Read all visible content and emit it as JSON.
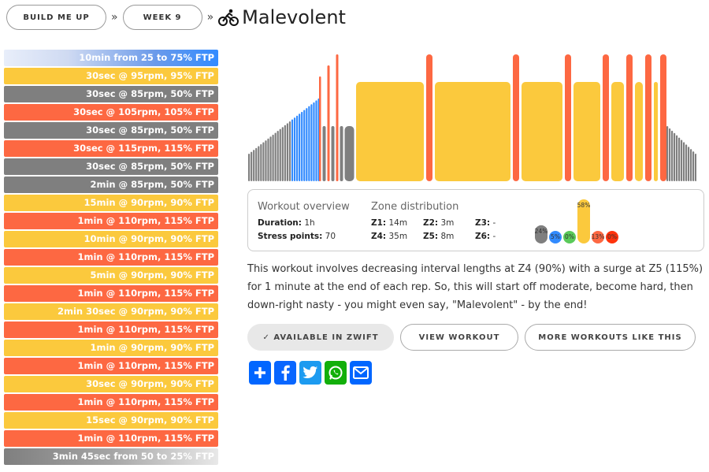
{
  "breadcrumb": {
    "home": "BUILD ME UP",
    "week": "WEEK 9",
    "sep": "»"
  },
  "workout": {
    "title": "Malevolent"
  },
  "steps": [
    {
      "text": "10min from 25 to 75% FTP",
      "zone": "warm"
    },
    {
      "text": "30sec @ 95rpm, 95% FTP",
      "zone": "y"
    },
    {
      "text": "30sec @ 85rpm, 50% FTP",
      "zone": "g"
    },
    {
      "text": "30sec @ 105rpm, 105% FTP",
      "zone": "r"
    },
    {
      "text": "30sec @ 85rpm, 50% FTP",
      "zone": "g"
    },
    {
      "text": "30sec @ 115rpm, 115% FTP",
      "zone": "r"
    },
    {
      "text": "30sec @ 85rpm, 50% FTP",
      "zone": "g"
    },
    {
      "text": "2min @ 85rpm, 50% FTP",
      "zone": "g"
    },
    {
      "text": "15min @ 90rpm, 90% FTP",
      "zone": "y"
    },
    {
      "text": "1min @ 110rpm, 115% FTP",
      "zone": "r"
    },
    {
      "text": "10min @ 90rpm, 90% FTP",
      "zone": "y"
    },
    {
      "text": "1min @ 110rpm, 115% FTP",
      "zone": "r"
    },
    {
      "text": "5min @ 90rpm, 90% FTP",
      "zone": "y"
    },
    {
      "text": "1min @ 110rpm, 115% FTP",
      "zone": "r"
    },
    {
      "text": "2min 30sec @ 90rpm, 90% FTP",
      "zone": "y"
    },
    {
      "text": "1min @ 110rpm, 115% FTP",
      "zone": "r"
    },
    {
      "text": "1min @ 90rpm, 90% FTP",
      "zone": "y"
    },
    {
      "text": "1min @ 110rpm, 115% FTP",
      "zone": "r"
    },
    {
      "text": "30sec @ 90rpm, 90% FTP",
      "zone": "y"
    },
    {
      "text": "1min @ 110rpm, 115% FTP",
      "zone": "r"
    },
    {
      "text": "15sec @ 90rpm, 90% FTP",
      "zone": "y"
    },
    {
      "text": "1min @ 110rpm, 115% FTP",
      "zone": "r"
    },
    {
      "text": "3min 45sec from 50 to 25% FTP",
      "zone": "cool"
    }
  ],
  "overview": {
    "heading": "Workout overview",
    "duration_label": "Duration:",
    "duration_value": "1h",
    "stress_label": "Stress points:",
    "stress_value": "70"
  },
  "zones": {
    "heading": "Zone distribution",
    "z1_label": "Z1:",
    "z1_value": "14m",
    "z2_label": "Z2:",
    "z2_value": "3m",
    "z3_label": "Z3:",
    "z3_value": "-",
    "z4_label": "Z4:",
    "z4_value": "35m",
    "z5_label": "Z5:",
    "z5_value": "8m",
    "z6_label": "Z6:",
    "z6_value": "-",
    "distribution": [
      {
        "zone": "Z1",
        "label": "24%",
        "pct": 24,
        "color": "#7f7f7f"
      },
      {
        "zone": "Z2",
        "label": "5%",
        "pct": 5,
        "color": "#328bff"
      },
      {
        "zone": "Z3",
        "label": "0%",
        "pct": 0,
        "color": "#5aca5a"
      },
      {
        "zone": "Z4",
        "label": "58%",
        "pct": 58,
        "color": "#fbc93d"
      },
      {
        "zone": "Z5",
        "label": "13%",
        "pct": 13,
        "color": "#fd6842"
      },
      {
        "zone": "Z6",
        "label": "0%",
        "pct": 0,
        "color": "#ff330c"
      }
    ]
  },
  "description": "This workout involves decreasing interval lengths at Z4 (90%) with a surge at Z5 (115%) for 1 minute at the end of each rep. So, this will start off moderate, become hard, then down-right nasty - you might even say, \"Malevolent\" - by the end!",
  "buttons": {
    "available": "✓ AVAILABLE IN ZWIFT",
    "view": "VIEW WORKOUT",
    "more": "MORE WORKOUTS LIKE THIS"
  },
  "share": [
    {
      "name": "addtoany-share-icon",
      "glyph": "+",
      "color": "#0166ff"
    },
    {
      "name": "facebook-share-icon",
      "glyph": "f",
      "color": "#0866ff"
    },
    {
      "name": "twitter-share-icon",
      "glyph": "t",
      "color": "#1d9bf0"
    },
    {
      "name": "whatsapp-share-icon",
      "glyph": "w",
      "color": "#12af0a"
    },
    {
      "name": "email-share-icon",
      "glyph": "✉",
      "color": "#0166ff"
    }
  ],
  "colors": {
    "z1": "#7f7f7f",
    "z2": "#328bff",
    "z3": "#5aca5a",
    "z4": "#fbc93d",
    "z5": "#fd6842",
    "z6": "#ff330c"
  },
  "profile": {
    "warmup_minutes": 10,
    "warmup_range_ftp": [
      25,
      75
    ],
    "cooldown_range_ftp": [
      50,
      25
    ]
  }
}
